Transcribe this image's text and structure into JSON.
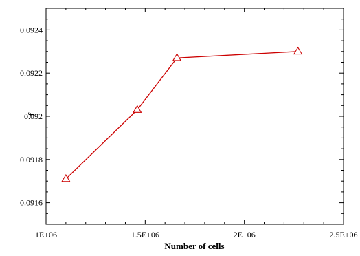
{
  "chart_data": {
    "type": "line",
    "title": "",
    "xlabel": "Number of cells",
    "ylabel": "f",
    "xlim": [
      1000000,
      2500000
    ],
    "ylim": [
      0.0915,
      0.0925
    ],
    "x_ticks": [
      1000000,
      1500000,
      2000000,
      2500000
    ],
    "x_tick_labels": [
      "1E+06",
      "1.5E+06",
      "2E+06",
      "2.5E+06"
    ],
    "y_ticks": [
      0.0916,
      0.0918,
      0.092,
      0.0922,
      0.0924
    ],
    "y_tick_labels": [
      "0.0916",
      "0.0918",
      "0.092",
      "0.0922",
      "0.0924"
    ],
    "grid": false,
    "legend": "none",
    "marker": "triangle-open",
    "series": [
      {
        "color": "#cc0000",
        "x": [
          1100000,
          1460000,
          1660000,
          2270000
        ],
        "y": [
          0.09171,
          0.09203,
          0.09227,
          0.0923
        ]
      }
    ]
  }
}
